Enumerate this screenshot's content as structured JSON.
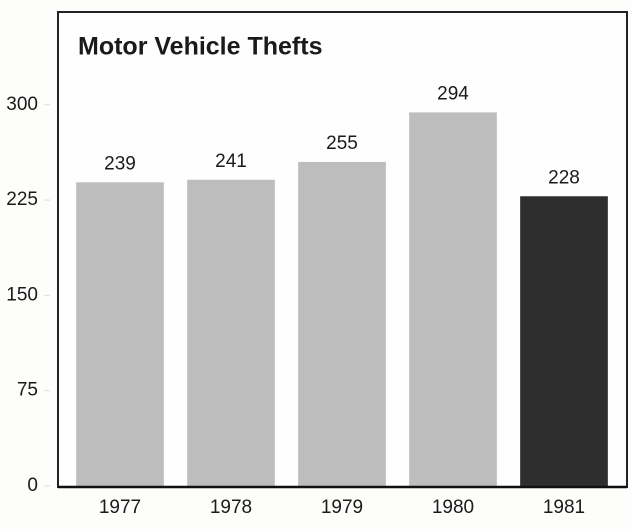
{
  "chart_data": {
    "type": "bar",
    "title": "Motor Vehicle Thefts",
    "categories": [
      "1977",
      "1978",
      "1979",
      "1980",
      "1981"
    ],
    "values": [
      239,
      241,
      255,
      294,
      228
    ],
    "colors": [
      "#bdbdbd",
      "#bdbdbd",
      "#bdbdbd",
      "#bdbdbd",
      "#2e2e2e"
    ],
    "ylim": [
      0,
      373
    ],
    "yticks": [
      0,
      75,
      150,
      225,
      300
    ],
    "grid": false
  }
}
